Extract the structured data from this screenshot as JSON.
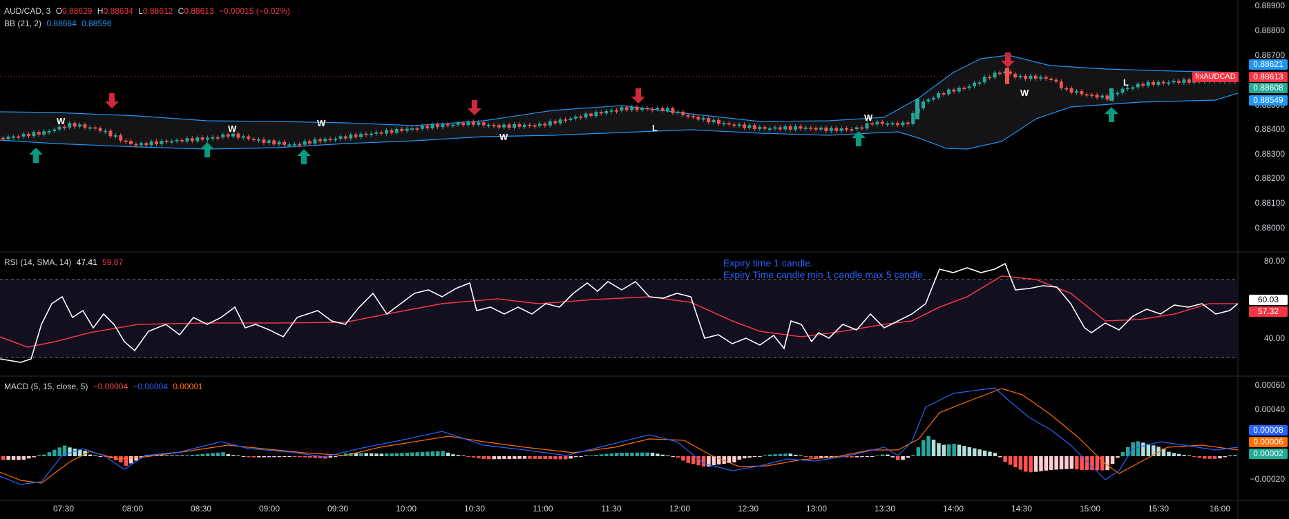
{
  "main_legend": {
    "symbol": "AUD/CAD, 3",
    "o_key": "O",
    "o_val": "0.88629",
    "h_key": "H",
    "h_val": "0.88634",
    "l_key": "L",
    "l_val": "0.88612",
    "c_key": "C",
    "c_val": "0.88613",
    "change": "−0.00015 (−0.02%)"
  },
  "bb_legend": {
    "name": "BB (21, 2)",
    "upper": "0.88664",
    "lower": "0.88596"
  },
  "rsi_legend": {
    "name": "RSI (14, SMA, 14)",
    "rsi": "47.41",
    "sma": "59.87"
  },
  "macd_legend": {
    "name": "MACD (5, 15, close, 5)",
    "hist": "−0.00004",
    "macd": "−0.00004",
    "signal": "0.00001"
  },
  "price_axis": [
    "0.88900",
    "0.88800",
    "0.88700",
    "0.88600",
    "0.88500",
    "0.88400",
    "0.88300",
    "0.88200",
    "0.88100",
    "0.88000"
  ],
  "price_badges": {
    "symbol": "frxAUDCAD",
    "bb_upper": "0.88621",
    "last": "0.88613",
    "bb_mid": "0.88608",
    "bb_lower": "0.88549"
  },
  "rsi_axis": [
    "80.00",
    "40.00"
  ],
  "rsi_badges": {
    "rsi": "60.03",
    "sma": "57.32"
  },
  "macd_axis": [
    "0.00060",
    "0.00040",
    "−0.00020"
  ],
  "macd_badges": {
    "macd": "0.00008",
    "signal": "0.00006",
    "hist": "0.00002"
  },
  "time_axis": [
    "07:30",
    "08:00",
    "08:30",
    "09:00",
    "09:30",
    "10:00",
    "10:30",
    "11:00",
    "11:30",
    "12:00",
    "12:30",
    "13:00",
    "13:30",
    "14:00",
    "14:30",
    "15:00",
    "15:30",
    "16:00"
  ],
  "notes": [
    "Expiry time 1 candle.",
    "Expiry Time candle min 1 candle max 5 candle"
  ],
  "colors": {
    "bull": "#26a69a",
    "bear": "#ef5350",
    "bb": "#2196f3",
    "rsi_line": "#ffffff",
    "rsi_sma": "#f23645",
    "macd_line": "#2962ff",
    "signal_line": "#ff6d00",
    "grid": "#1e222d"
  },
  "markers": [
    {
      "type": "up",
      "label": "W"
    },
    {
      "type": "down",
      "label": "W"
    },
    {
      "type": "up",
      "label": "W"
    },
    {
      "type": "up",
      "label": "W"
    },
    {
      "type": "down",
      "label": "L"
    },
    {
      "type": "down",
      "label": "W"
    },
    {
      "type": "up",
      "label": "W"
    },
    {
      "type": "down",
      "label": "L"
    },
    {
      "type": "up",
      "label": "W"
    }
  ]
}
